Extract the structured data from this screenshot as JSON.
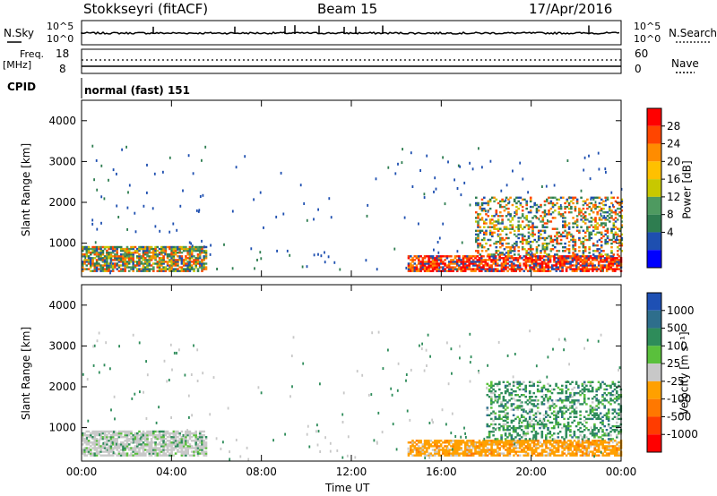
{
  "header": {
    "title": "Stokkseyri (fitACF)",
    "beam": "Beam 15",
    "date": "17/Apr/2016"
  },
  "status_panel": {
    "nsky_label": "N.Sky",
    "nsearch_label": "N.Search",
    "freq_label_line1": "Freq.",
    "freq_label_line2": "[MHz]",
    "nave_label": "Nave",
    "cpid_label": "CPID",
    "cpid_value": "normal (fast) 151",
    "noise_ticks": [
      "10^5",
      "10^0"
    ],
    "freq_ticks": [
      "18",
      "8"
    ],
    "nave_ticks": [
      "60",
      "0"
    ]
  },
  "chart_data": [
    {
      "type": "heatmap",
      "panel": "power",
      "xlabel": "",
      "ylabel": "Slant Range [km]",
      "xlim": [
        0,
        24
      ],
      "ylim": [
        180,
        4500
      ],
      "x_ticks": [
        "00:00",
        "04:00",
        "08:00",
        "12:00",
        "16:00",
        "20:00",
        "00:00"
      ],
      "y_ticks": [
        1000,
        2000,
        3000,
        4000
      ],
      "colorbar": {
        "label": "Power [dB]",
        "ticks": [
          "28",
          "24",
          "20",
          "16",
          "12",
          "8",
          "4"
        ],
        "colors": [
          "#ff0000",
          "#ff4500",
          "#ff8c00",
          "#ffc000",
          "#c8c800",
          "#4e9a60",
          "#2e7d50",
          "#1e4fb0",
          "#0000ff"
        ]
      },
      "regions": [
        {
          "t": [
            0.0,
            5.5
          ],
          "r": [
            300,
            900
          ],
          "level": "mixed"
        },
        {
          "t": [
            14.5,
            24.0
          ],
          "r": [
            300,
            700
          ],
          "level": "high"
        },
        {
          "t": [
            17.5,
            24.0
          ],
          "r": [
            700,
            2100
          ],
          "level": "mixed"
        }
      ]
    },
    {
      "type": "heatmap",
      "panel": "velocity",
      "xlabel": "Time UT",
      "ylabel": "Slant Range [km]",
      "xlim": [
        0,
        24
      ],
      "ylim": [
        180,
        4500
      ],
      "x_ticks": [
        "00:00",
        "04:00",
        "08:00",
        "12:00",
        "16:00",
        "20:00",
        "00:00"
      ],
      "y_ticks": [
        1000,
        2000,
        3000,
        4000
      ],
      "colorbar": {
        "label": "Velocity [m s⁻¹]",
        "ticks": [
          "1000",
          "500",
          "100",
          "25",
          "-25",
          "-100",
          "-500",
          "-1000"
        ],
        "colors": [
          "#1e50b4",
          "#2e6e8c",
          "#2e8c5a",
          "#5ac03c",
          "#c8c8c8",
          "#ffa000",
          "#ff7800",
          "#ff3c00",
          "#ff0000"
        ]
      },
      "regions": [
        {
          "t": [
            0.0,
            5.5
          ],
          "r": [
            300,
            900
          ],
          "level": "gray"
        },
        {
          "t": [
            14.5,
            24.0
          ],
          "r": [
            300,
            700
          ],
          "level": "orange"
        },
        {
          "t": [
            18.0,
            24.0
          ],
          "r": [
            700,
            2100
          ],
          "level": "green"
        }
      ]
    }
  ]
}
